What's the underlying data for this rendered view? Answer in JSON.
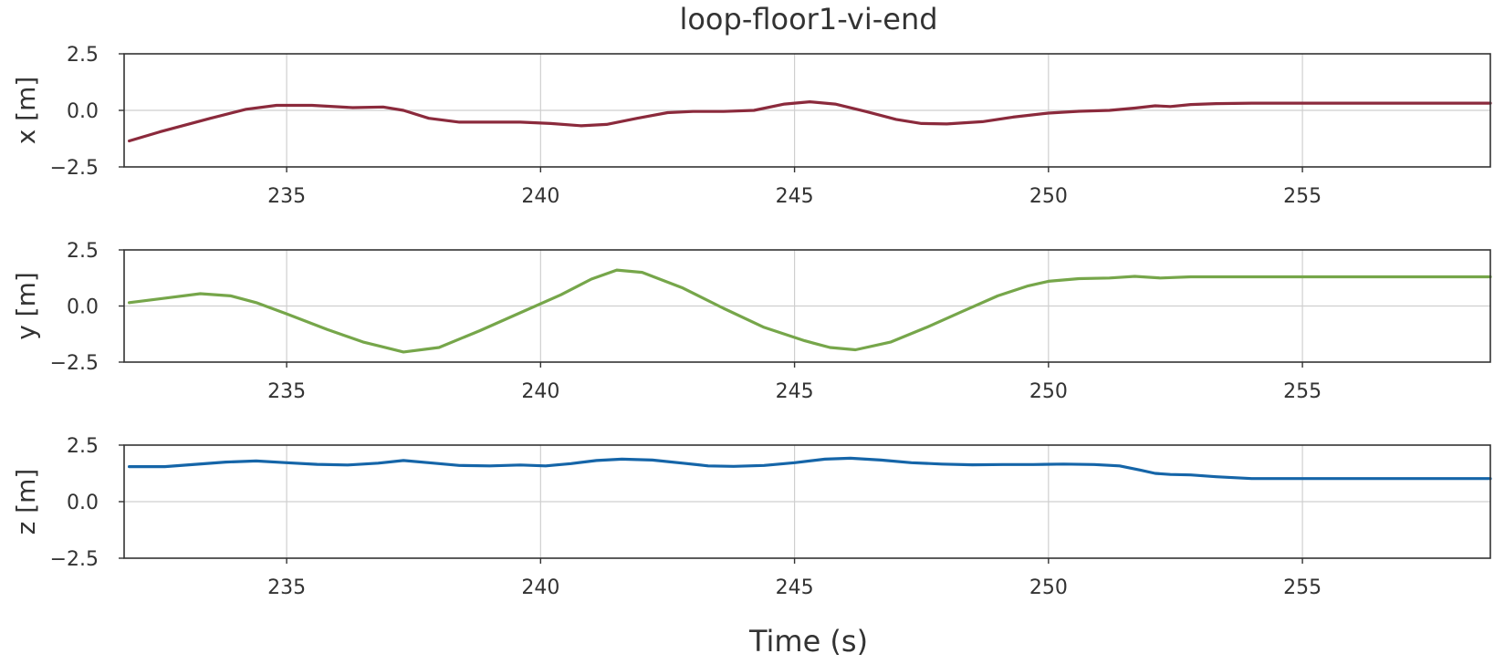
{
  "chart_data": {
    "type": "line",
    "title": "loop-floor1-vi-end",
    "xlabel": "Time (s)",
    "xlim": [
      231.8,
      258.7
    ],
    "xticks": [
      235,
      240,
      245,
      250,
      255
    ],
    "xtick_labels": [
      "235",
      "240",
      "245",
      "250",
      "255"
    ],
    "grid": true,
    "panels": [
      {
        "ylabel": "x [m]",
        "ylim": [
          -2.5,
          2.5
        ],
        "yticks": [
          2.5,
          0.0,
          -2.5
        ],
        "ytick_labels": [
          "2.5",
          "0.0",
          "−2.5"
        ],
        "color": "#8B2A3C",
        "x": [
          231.9,
          232.5,
          233.5,
          234.2,
          234.8,
          235.5,
          236.3,
          236.9,
          237.3,
          237.8,
          238.4,
          239.0,
          239.6,
          240.2,
          240.8,
          241.3,
          241.9,
          242.5,
          243.0,
          243.6,
          244.2,
          244.8,
          245.3,
          245.8,
          246.4,
          247.0,
          247.5,
          248.0,
          248.7,
          249.3,
          250.0,
          250.6,
          251.2,
          251.7,
          252.1,
          252.4,
          252.8,
          253.3,
          254.0,
          255.0,
          256.0,
          257.0,
          258.0,
          258.7
        ],
        "y": [
          -1.35,
          -0.95,
          -0.35,
          0.05,
          0.22,
          0.22,
          0.12,
          0.15,
          0.0,
          -0.35,
          -0.52,
          -0.52,
          -0.52,
          -0.58,
          -0.68,
          -0.62,
          -0.35,
          -0.1,
          -0.05,
          -0.05,
          0.0,
          0.28,
          0.38,
          0.28,
          -0.05,
          -0.4,
          -0.58,
          -0.6,
          -0.5,
          -0.3,
          -0.12,
          -0.04,
          0.0,
          0.1,
          0.2,
          0.17,
          0.26,
          0.3,
          0.32,
          0.32,
          0.32,
          0.32,
          0.32,
          0.32
        ]
      },
      {
        "ylabel": "y [m]",
        "ylim": [
          -2.5,
          2.5
        ],
        "yticks": [
          2.5,
          0.0,
          -2.5
        ],
        "ytick_labels": [
          "2.5",
          "0.0",
          "−2.5"
        ],
        "color": "#76A64A",
        "x": [
          231.9,
          232.6,
          233.3,
          233.9,
          234.4,
          235.0,
          235.8,
          236.5,
          237.3,
          238.0,
          238.8,
          239.6,
          240.4,
          241.0,
          241.5,
          242.0,
          242.8,
          243.6,
          244.4,
          245.2,
          245.7,
          246.2,
          246.9,
          247.6,
          248.3,
          249.0,
          249.6,
          250.0,
          250.6,
          251.2,
          251.7,
          252.2,
          252.8,
          253.4,
          254.0,
          255.0,
          256.0,
          257.0,
          258.0,
          258.7
        ],
        "y": [
          0.15,
          0.35,
          0.55,
          0.45,
          0.15,
          -0.35,
          -1.05,
          -1.6,
          -2.05,
          -1.85,
          -1.1,
          -0.3,
          0.5,
          1.2,
          1.6,
          1.5,
          0.8,
          -0.1,
          -0.95,
          -1.55,
          -1.85,
          -1.95,
          -1.6,
          -0.95,
          -0.25,
          0.45,
          0.9,
          1.1,
          1.22,
          1.25,
          1.32,
          1.25,
          1.3,
          1.3,
          1.3,
          1.3,
          1.3,
          1.3,
          1.3,
          1.3
        ]
      },
      {
        "ylabel": "z [m]",
        "ylim": [
          -2.5,
          2.5
        ],
        "yticks": [
          2.5,
          0.0,
          -2.5
        ],
        "ytick_labels": [
          "2.5",
          "0.0",
          "−2.5"
        ],
        "color": "#1565A8",
        "x": [
          231.9,
          232.6,
          233.2,
          233.8,
          234.4,
          235.0,
          235.6,
          236.2,
          236.8,
          237.3,
          237.8,
          238.4,
          239.0,
          239.6,
          240.1,
          240.6,
          241.1,
          241.6,
          242.2,
          242.8,
          243.3,
          243.8,
          244.4,
          245.0,
          245.6,
          246.1,
          246.7,
          247.3,
          247.9,
          248.5,
          249.1,
          249.7,
          250.3,
          250.9,
          251.4,
          251.8,
          252.1,
          252.4,
          252.8,
          253.3,
          254.0,
          255.0,
          256.0,
          257.0,
          258.0,
          258.7
        ],
        "y": [
          1.55,
          1.55,
          1.65,
          1.75,
          1.8,
          1.72,
          1.65,
          1.62,
          1.7,
          1.82,
          1.72,
          1.6,
          1.58,
          1.62,
          1.58,
          1.68,
          1.82,
          1.88,
          1.84,
          1.7,
          1.58,
          1.56,
          1.6,
          1.72,
          1.88,
          1.92,
          1.84,
          1.72,
          1.66,
          1.63,
          1.64,
          1.64,
          1.66,
          1.64,
          1.58,
          1.4,
          1.25,
          1.2,
          1.18,
          1.1,
          1.02,
          1.02,
          1.02,
          1.02,
          1.02,
          1.02
        ]
      }
    ]
  }
}
